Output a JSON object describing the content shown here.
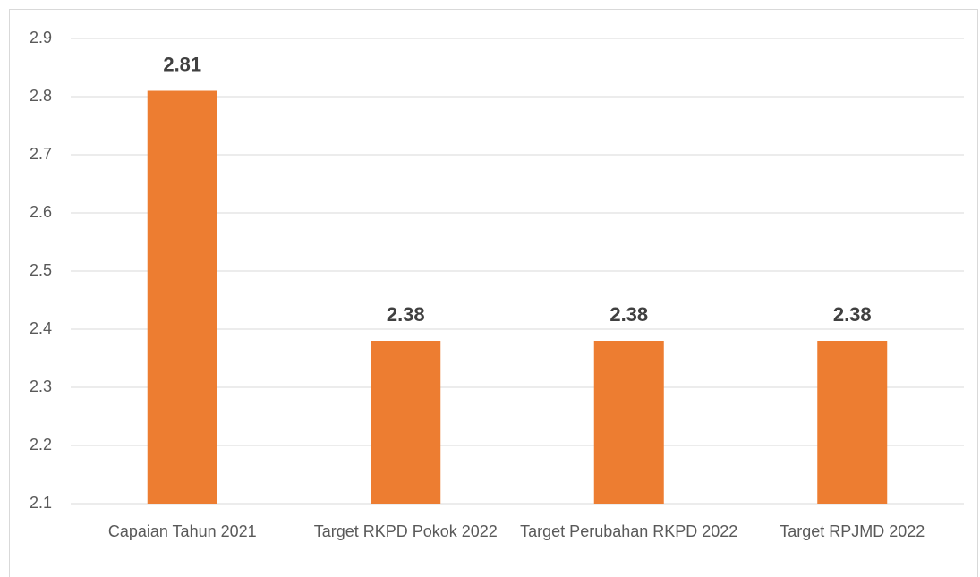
{
  "chart_data": {
    "type": "bar",
    "categories": [
      "Capaian Tahun 2021",
      "Target RKPD Pokok 2022",
      "Target Perubahan RKPD 2022",
      "Target RPJMD 2022"
    ],
    "values": [
      2.81,
      2.38,
      2.38,
      2.38
    ],
    "color": "#ed7d31",
    "ylim": [
      2.1,
      2.9
    ],
    "yticks": [
      2.1,
      2.2,
      2.3,
      2.4,
      2.5,
      2.6,
      2.7,
      2.8,
      2.9
    ],
    "grid": true
  }
}
